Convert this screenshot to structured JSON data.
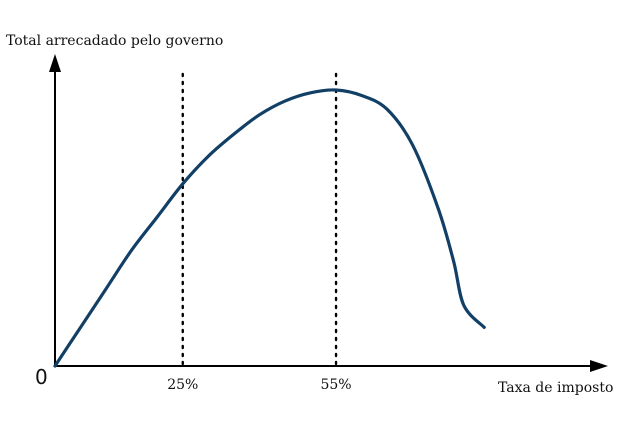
{
  "chart_data": {
    "type": "line",
    "ylabel": "Total arrecadado pelo governo",
    "xlabel": "Taxa de imposto",
    "origin_label": "0",
    "xlim": [
      0,
      100
    ],
    "ylim": [
      0,
      100
    ],
    "x_markers": [
      {
        "x": 25,
        "label": "25%"
      },
      {
        "x": 55,
        "label": "55%"
      }
    ],
    "series": [
      {
        "color": "#123f66",
        "x": [
          0,
          5,
          10,
          15,
          20,
          25,
          30,
          35,
          40,
          45,
          50,
          55,
          60,
          65,
          70,
          75,
          78,
          80,
          84
        ],
        "y": [
          0,
          14,
          28,
          42,
          54,
          66,
          76,
          84,
          91,
          96,
          99,
          100,
          98,
          93,
          80,
          57,
          38,
          22,
          14
        ]
      }
    ],
    "colors": {
      "axis": "#000000",
      "curve": "#123f66",
      "marker": "#000000"
    },
    "grid": false,
    "legend": "none"
  }
}
